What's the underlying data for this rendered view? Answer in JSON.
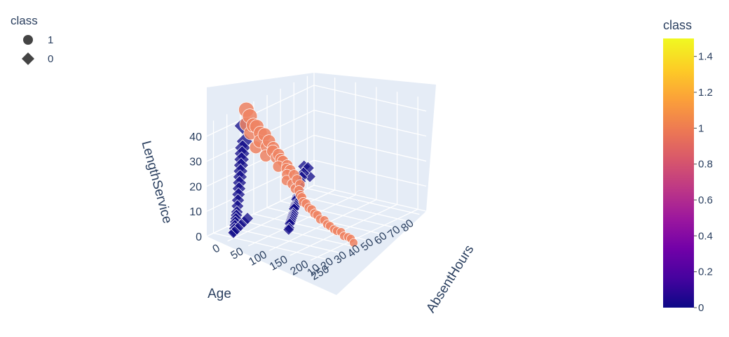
{
  "chart_data": {
    "type": "scatter",
    "subtype": "scatter3d",
    "x_axis": {
      "label": "AbsentHours",
      "range": [
        0,
        270
      ],
      "ticks": [
        0,
        50,
        100,
        150,
        200,
        250
      ]
    },
    "y_axis": {
      "label": "Age",
      "range": [
        5,
        85
      ],
      "ticks": [
        10,
        20,
        30,
        40,
        50,
        60,
        70,
        80
      ]
    },
    "z_axis": {
      "label": "LengthService",
      "range": [
        0,
        45
      ],
      "ticks": [
        0,
        10,
        20,
        30,
        40
      ]
    },
    "grid": true,
    "legend": {
      "title": "class",
      "placement": "top-left",
      "items": [
        {
          "label": "1",
          "symbol": "circle"
        },
        {
          "label": "0",
          "symbol": "diamond"
        }
      ]
    },
    "colorbar": {
      "title": "class",
      "range": [
        0,
        1.5
      ],
      "ticks": [
        "0",
        "0.2",
        "0.4",
        "0.6",
        "0.8",
        "1",
        "1.2",
        "1.4"
      ],
      "colorscale": [
        "#0d0887",
        "#46039f",
        "#7201a8",
        "#9c179e",
        "#bd3786",
        "#d8576b",
        "#ed7953",
        "#fb9f3a",
        "#fdca26",
        "#f0f921"
      ]
    },
    "series": [
      {
        "name": "1",
        "symbol": "circle",
        "color": "#ee8262",
        "points": [
          [
            8,
            32,
            44
          ],
          [
            10,
            34,
            41
          ],
          [
            6,
            33,
            38
          ],
          [
            12,
            36,
            37
          ],
          [
            14,
            38,
            36
          ],
          [
            9,
            35,
            34
          ],
          [
            16,
            40,
            33
          ],
          [
            20,
            42,
            32
          ],
          [
            18,
            39,
            30
          ],
          [
            24,
            44,
            29
          ],
          [
            15,
            37,
            28
          ],
          [
            22,
            43,
            27
          ],
          [
            28,
            46,
            26
          ],
          [
            30,
            45,
            25
          ],
          [
            26,
            41,
            24
          ],
          [
            34,
            48,
            23
          ],
          [
            32,
            47,
            22
          ],
          [
            36,
            49,
            21
          ],
          [
            38,
            50,
            20
          ],
          [
            40,
            46,
            19
          ],
          [
            42,
            52,
            18
          ],
          [
            44,
            51,
            17
          ],
          [
            46,
            53,
            16
          ],
          [
            48,
            50,
            15
          ],
          [
            52,
            54,
            14
          ],
          [
            50,
            49,
            13
          ],
          [
            56,
            55,
            12
          ],
          [
            54,
            52,
            11
          ],
          [
            60,
            56,
            10
          ],
          [
            58,
            53,
            9
          ],
          [
            70,
            52,
            9
          ],
          [
            80,
            50,
            8
          ],
          [
            90,
            48,
            8
          ],
          [
            100,
            46,
            7
          ],
          [
            110,
            45,
            7
          ],
          [
            120,
            44,
            6
          ],
          [
            130,
            43,
            6
          ],
          [
            140,
            42,
            5
          ],
          [
            150,
            41,
            5
          ],
          [
            160,
            40,
            4
          ],
          [
            170,
            40,
            4
          ],
          [
            180,
            39,
            3
          ],
          [
            190,
            38,
            3
          ],
          [
            200,
            38,
            2
          ],
          [
            210,
            37,
            2
          ],
          [
            220,
            37,
            2
          ],
          [
            230,
            36,
            1
          ],
          [
            240,
            36,
            1
          ],
          [
            250,
            35,
            1
          ],
          [
            260,
            34,
            0
          ]
        ]
      },
      {
        "name": "0",
        "symbol": "diamond",
        "color": "#0d0887",
        "points": [
          [
            5,
            76,
            10
          ],
          [
            8,
            78,
            9
          ],
          [
            10,
            74,
            8
          ],
          [
            12,
            72,
            7
          ],
          [
            15,
            70,
            6
          ],
          [
            6,
            80,
            5
          ],
          [
            20,
            68,
            5
          ],
          [
            25,
            66,
            4
          ],
          [
            30,
            64,
            4
          ],
          [
            35,
            62,
            3
          ],
          [
            40,
            60,
            3
          ],
          [
            45,
            58,
            3
          ],
          [
            50,
            56,
            2
          ],
          [
            55,
            54,
            2
          ],
          [
            60,
            52,
            2
          ],
          [
            65,
            50,
            2
          ],
          [
            70,
            48,
            1
          ],
          [
            75,
            46,
            1
          ],
          [
            80,
            44,
            1
          ],
          [
            85,
            42,
            1
          ],
          [
            90,
            40,
            1
          ],
          [
            95,
            38,
            1
          ],
          [
            100,
            36,
            1
          ],
          [
            105,
            34,
            0
          ],
          [
            110,
            32,
            0
          ],
          [
            6,
            30,
            38
          ],
          [
            10,
            30,
            32
          ],
          [
            12,
            28,
            30
          ],
          [
            14,
            27,
            28
          ],
          [
            16,
            26,
            26
          ],
          [
            18,
            25,
            24
          ],
          [
            20,
            24,
            22
          ],
          [
            22,
            23,
            20
          ],
          [
            24,
            22,
            18
          ],
          [
            26,
            21,
            16
          ],
          [
            28,
            20,
            14
          ],
          [
            30,
            19,
            12
          ],
          [
            32,
            18,
            10
          ],
          [
            34,
            17,
            8
          ],
          [
            36,
            16,
            7
          ],
          [
            38,
            15,
            6
          ],
          [
            40,
            14,
            5
          ],
          [
            42,
            13,
            4
          ],
          [
            44,
            12,
            3
          ],
          [
            46,
            11,
            2
          ],
          [
            48,
            10,
            2
          ],
          [
            50,
            12,
            3
          ],
          [
            52,
            14,
            4
          ],
          [
            54,
            16,
            5
          ],
          [
            56,
            18,
            6
          ]
        ]
      }
    ]
  }
}
